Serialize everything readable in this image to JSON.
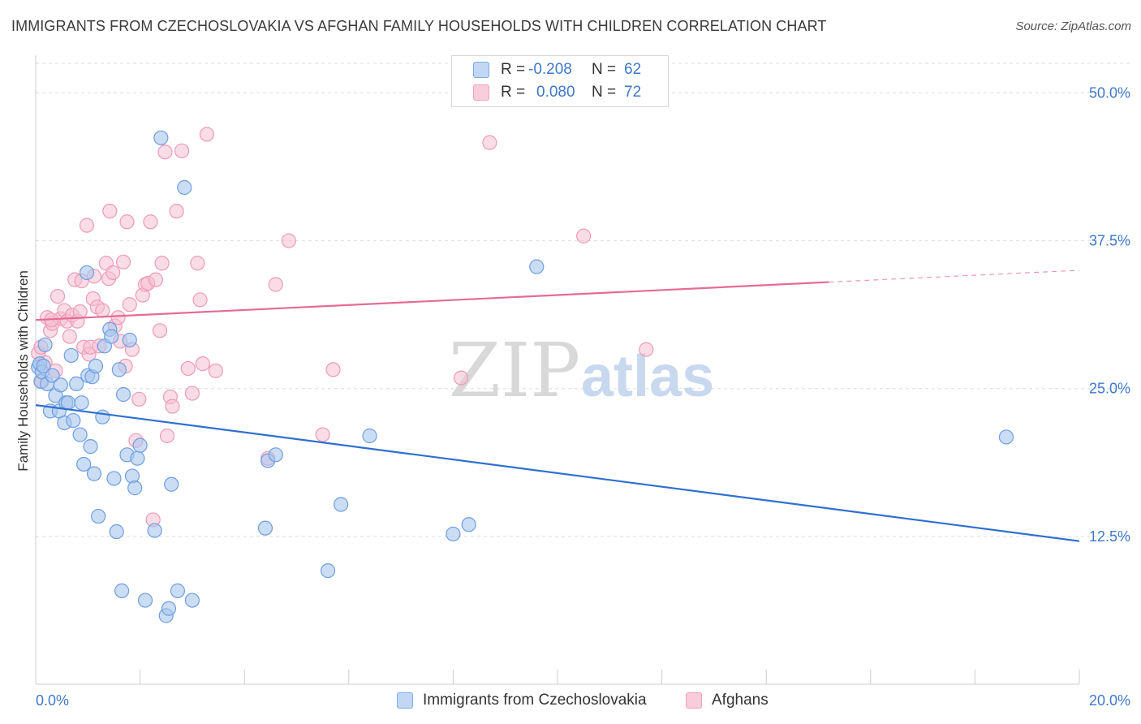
{
  "header": {
    "title": "IMMIGRANTS FROM CZECHOSLOVAKIA VS AFGHAN FAMILY HOUSEHOLDS WITH CHILDREN CORRELATION CHART",
    "source": "Source: ZipAtlas.com"
  },
  "watermark": {
    "part1": "ZIP",
    "part2": "atlas"
  },
  "legend": {
    "rows": [
      {
        "r_label": "R =",
        "r_value": "-0.208",
        "n_label": "N =",
        "n_value": "62",
        "color": "#7aaae8"
      },
      {
        "r_label": "R =",
        "r_value": "0.080",
        "n_label": "N =",
        "n_value": "72",
        "color": "#f2a0bc"
      }
    ]
  },
  "bottom_legend": {
    "series1": "Immigrants from Czechoslovakia",
    "series2": "Afghans"
  },
  "colors": {
    "blue_fill": "#a9c6ef",
    "blue_stroke": "#6d9ee0",
    "blue_line": "#2f6fcf",
    "pink_fill": "#f6c0d2",
    "pink_stroke": "#ee9ab8",
    "pink_line": "#e56b95",
    "tick_text": "#3f78c8",
    "grid": "#dddddd"
  },
  "chart_data": {
    "type": "scatter",
    "ylabel": "Family Households with Children",
    "xlim": [
      0,
      20
    ],
    "ylim": [
      0,
      52.5
    ],
    "x_tick_labels": [
      "0.0%",
      "20.0%"
    ],
    "y_ticks": [
      12.5,
      25.0,
      37.5,
      50.0
    ],
    "y_tick_labels": [
      "12.5%",
      "25.0%",
      "37.5%",
      "50.0%"
    ],
    "grid": "dashed horizontal",
    "series": [
      {
        "name": "Immigrants from Czechoslovakia",
        "trend": {
          "x": [
            0,
            20
          ],
          "y": [
            23.6,
            12.1
          ]
        },
        "points": [
          [
            0.05,
            26.8
          ],
          [
            0.08,
            27.1
          ],
          [
            0.1,
            25.6
          ],
          [
            0.12,
            26.4
          ],
          [
            0.15,
            26.9
          ],
          [
            0.18,
            28.7
          ],
          [
            0.22,
            25.4
          ],
          [
            0.28,
            23.1
          ],
          [
            0.32,
            26.1
          ],
          [
            0.38,
            24.4
          ],
          [
            0.45,
            23.1
          ],
          [
            0.48,
            25.3
          ],
          [
            0.55,
            22.1
          ],
          [
            0.58,
            23.8
          ],
          [
            0.62,
            23.8
          ],
          [
            0.68,
            27.8
          ],
          [
            0.72,
            22.3
          ],
          [
            0.78,
            25.4
          ],
          [
            0.85,
            21.1
          ],
          [
            0.88,
            23.8
          ],
          [
            0.92,
            18.6
          ],
          [
            0.98,
            34.8
          ],
          [
            1.0,
            26.1
          ],
          [
            1.05,
            20.1
          ],
          [
            1.08,
            26.0
          ],
          [
            1.12,
            17.8
          ],
          [
            1.15,
            26.9
          ],
          [
            1.2,
            14.2
          ],
          [
            1.28,
            22.6
          ],
          [
            1.32,
            28.6
          ],
          [
            1.42,
            30.0
          ],
          [
            1.45,
            29.4
          ],
          [
            1.5,
            17.4
          ],
          [
            1.55,
            12.9
          ],
          [
            1.6,
            26.6
          ],
          [
            1.65,
            7.9
          ],
          [
            1.68,
            24.5
          ],
          [
            1.75,
            19.4
          ],
          [
            1.8,
            29.1
          ],
          [
            1.85,
            17.6
          ],
          [
            1.9,
            16.6
          ],
          [
            1.95,
            19.1
          ],
          [
            2.0,
            20.2
          ],
          [
            2.1,
            7.1
          ],
          [
            2.28,
            13.0
          ],
          [
            2.4,
            46.2
          ],
          [
            2.5,
            5.8
          ],
          [
            2.55,
            6.4
          ],
          [
            2.6,
            16.9
          ],
          [
            2.72,
            7.9
          ],
          [
            2.85,
            42.0
          ],
          [
            3.0,
            7.1
          ],
          [
            4.4,
            13.2
          ],
          [
            4.45,
            18.9
          ],
          [
            4.6,
            19.4
          ],
          [
            5.6,
            9.6
          ],
          [
            5.85,
            15.2
          ],
          [
            6.4,
            21.0
          ],
          [
            8.0,
            12.7
          ],
          [
            8.3,
            13.5
          ],
          [
            9.6,
            35.3
          ],
          [
            18.6,
            20.9
          ]
        ]
      },
      {
        "name": "Afghans",
        "trend": {
          "x": [
            0,
            15.2
          ],
          "y": [
            30.8,
            34.0
          ]
        },
        "trend_dashed": {
          "x": [
            15.2,
            20
          ],
          "y": [
            34.0,
            35.0
          ]
        },
        "points": [
          [
            0.05,
            28.0
          ],
          [
            0.1,
            28.5
          ],
          [
            0.12,
            25.6
          ],
          [
            0.18,
            27.2
          ],
          [
            0.22,
            31.0
          ],
          [
            0.28,
            29.9
          ],
          [
            0.32,
            30.5
          ],
          [
            0.38,
            26.5
          ],
          [
            0.42,
            32.8
          ],
          [
            0.48,
            30.9
          ],
          [
            0.55,
            31.6
          ],
          [
            0.6,
            30.7
          ],
          [
            0.65,
            29.4
          ],
          [
            0.7,
            31.2
          ],
          [
            0.75,
            34.2
          ],
          [
            0.8,
            30.7
          ],
          [
            0.85,
            31.5
          ],
          [
            0.88,
            34.1
          ],
          [
            0.92,
            28.5
          ],
          [
            0.98,
            38.8
          ],
          [
            1.02,
            27.9
          ],
          [
            1.05,
            28.5
          ],
          [
            1.1,
            32.6
          ],
          [
            1.12,
            34.5
          ],
          [
            1.18,
            31.9
          ],
          [
            1.22,
            28.6
          ],
          [
            1.28,
            31.6
          ],
          [
            1.35,
            35.6
          ],
          [
            1.4,
            34.3
          ],
          [
            1.42,
            40.0
          ],
          [
            1.48,
            34.8
          ],
          [
            1.52,
            30.3
          ],
          [
            1.58,
            31.0
          ],
          [
            1.62,
            29.0
          ],
          [
            1.68,
            35.7
          ],
          [
            1.72,
            26.9
          ],
          [
            1.75,
            39.1
          ],
          [
            1.8,
            32.1
          ],
          [
            1.85,
            28.3
          ],
          [
            1.92,
            20.6
          ],
          [
            1.98,
            24.1
          ],
          [
            2.05,
            32.9
          ],
          [
            2.1,
            33.8
          ],
          [
            2.15,
            33.9
          ],
          [
            2.2,
            39.1
          ],
          [
            2.25,
            13.9
          ],
          [
            2.3,
            34.2
          ],
          [
            2.38,
            29.9
          ],
          [
            2.42,
            35.6
          ],
          [
            2.48,
            45.0
          ],
          [
            2.52,
            21.0
          ],
          [
            2.58,
            24.3
          ],
          [
            2.62,
            23.5
          ],
          [
            2.7,
            40.0
          ],
          [
            2.8,
            45.1
          ],
          [
            2.92,
            26.7
          ],
          [
            3.0,
            24.6
          ],
          [
            3.1,
            35.6
          ],
          [
            3.15,
            32.5
          ],
          [
            3.2,
            27.1
          ],
          [
            3.28,
            46.5
          ],
          [
            3.45,
            26.5
          ],
          [
            4.45,
            19.1
          ],
          [
            4.6,
            33.8
          ],
          [
            4.85,
            37.5
          ],
          [
            5.5,
            21.1
          ],
          [
            5.7,
            26.6
          ],
          [
            8.15,
            25.9
          ],
          [
            8.7,
            45.8
          ],
          [
            10.5,
            37.9
          ],
          [
            11.7,
            28.3
          ],
          [
            0.3,
            30.8
          ]
        ]
      }
    ]
  }
}
